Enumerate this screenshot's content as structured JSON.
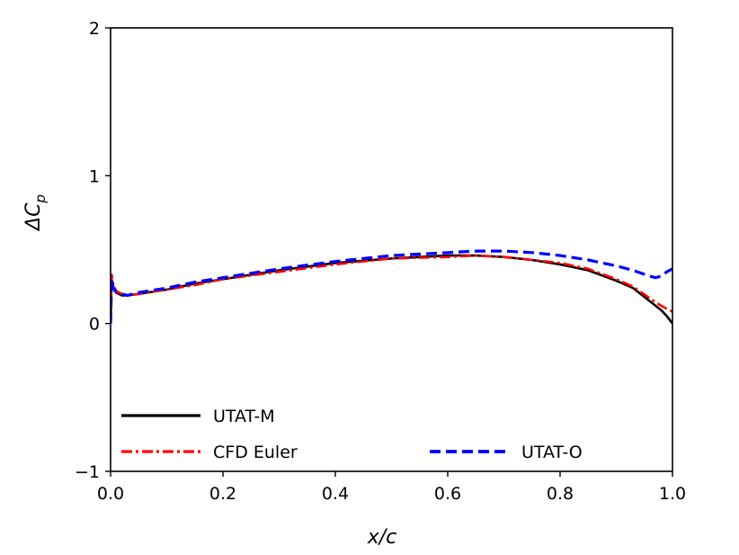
{
  "chart_data": {
    "type": "line",
    "xlabel": "x/c",
    "ylabel": "ΔC_p",
    "ylabel_main": "ΔC",
    "ylabel_sub": "p",
    "xlim": [
      0.0,
      1.0
    ],
    "ylim": [
      -1,
      2
    ],
    "xticks": [
      0.0,
      0.2,
      0.4,
      0.6,
      0.8,
      1.0
    ],
    "xtick_labels": [
      "0.0",
      "0.2",
      "0.4",
      "0.6",
      "0.8",
      "1.0"
    ],
    "yticks": [
      -1,
      0,
      1,
      2
    ],
    "ytick_labels": [
      "−1",
      "0",
      "1",
      "2"
    ],
    "legend_position": "lower",
    "series": [
      {
        "name": "UTAT-M",
        "color": "#000000",
        "style": "solid",
        "x": [
          0.0,
          0.002,
          0.005,
          0.01,
          0.02,
          0.03,
          0.05,
          0.1,
          0.15,
          0.2,
          0.3,
          0.4,
          0.5,
          0.6,
          0.65,
          0.7,
          0.75,
          0.8,
          0.85,
          0.9,
          0.93,
          0.96,
          0.98,
          0.99,
          1.0
        ],
        "y": [
          0.0,
          0.3,
          0.24,
          0.21,
          0.19,
          0.19,
          0.2,
          0.23,
          0.27,
          0.3,
          0.36,
          0.41,
          0.44,
          0.46,
          0.46,
          0.45,
          0.43,
          0.4,
          0.36,
          0.29,
          0.24,
          0.15,
          0.09,
          0.05,
          0.0
        ]
      },
      {
        "name": "CFD Euler",
        "color": "#ff0000",
        "style": "dashdot",
        "x": [
          0.0,
          0.002,
          0.005,
          0.01,
          0.02,
          0.03,
          0.05,
          0.1,
          0.15,
          0.2,
          0.3,
          0.4,
          0.5,
          0.6,
          0.65,
          0.7,
          0.75,
          0.8,
          0.85,
          0.9,
          0.93,
          0.96,
          0.98,
          0.99,
          1.0
        ],
        "y": [
          0.0,
          0.33,
          0.26,
          0.22,
          0.2,
          0.19,
          0.2,
          0.23,
          0.26,
          0.3,
          0.35,
          0.4,
          0.44,
          0.45,
          0.46,
          0.45,
          0.43,
          0.41,
          0.37,
          0.3,
          0.25,
          0.17,
          0.12,
          0.1,
          0.08
        ]
      },
      {
        "name": "UTAT-O",
        "color": "#0000ff",
        "style": "dashed",
        "x": [
          0.0,
          0.002,
          0.005,
          0.01,
          0.02,
          0.03,
          0.05,
          0.1,
          0.15,
          0.2,
          0.3,
          0.4,
          0.5,
          0.6,
          0.65,
          0.7,
          0.75,
          0.8,
          0.85,
          0.9,
          0.93,
          0.96,
          0.97,
          0.98,
          0.99,
          1.0
        ],
        "y": [
          0.0,
          0.3,
          0.24,
          0.21,
          0.2,
          0.19,
          0.21,
          0.24,
          0.28,
          0.31,
          0.37,
          0.42,
          0.46,
          0.48,
          0.49,
          0.49,
          0.48,
          0.46,
          0.43,
          0.39,
          0.36,
          0.32,
          0.31,
          0.32,
          0.35,
          0.37
        ]
      }
    ]
  }
}
